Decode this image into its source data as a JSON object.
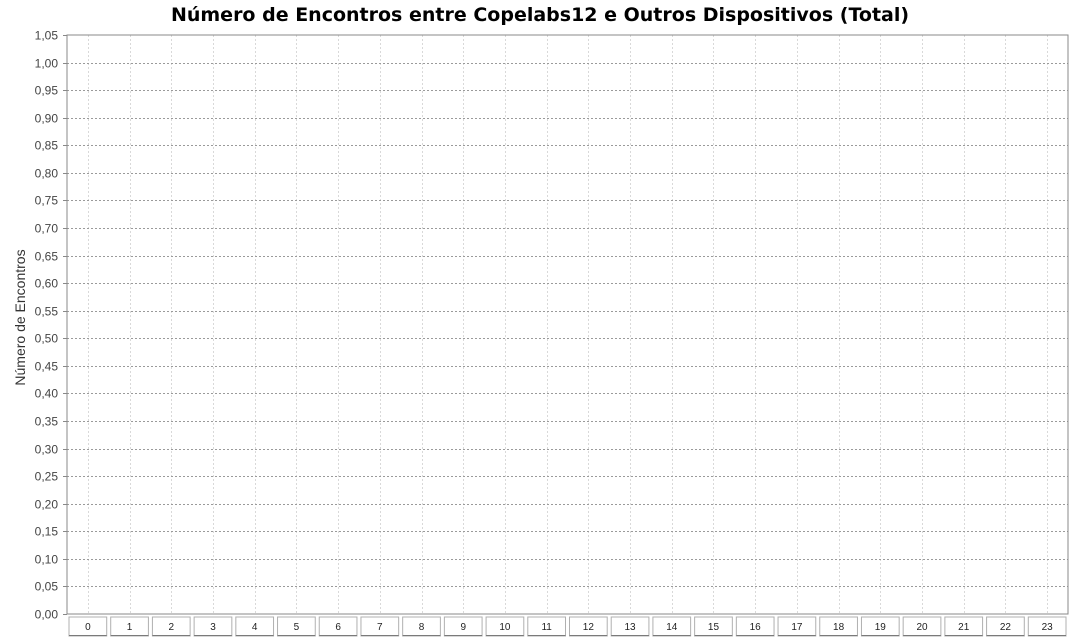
{
  "chart_data": {
    "type": "bar",
    "title": "Número de Encontros entre Copelabs12 e Outros Dispositivos (Total)",
    "xlabel": "",
    "ylabel": "Número de Encontros",
    "categories": [
      "0",
      "1",
      "2",
      "3",
      "4",
      "5",
      "6",
      "7",
      "8",
      "9",
      "10",
      "11",
      "12",
      "13",
      "14",
      "15",
      "16",
      "17",
      "18",
      "19",
      "20",
      "21",
      "22",
      "23"
    ],
    "series": [
      {
        "values": [
          0,
          0,
          0,
          0,
          0,
          0,
          0,
          0,
          0,
          0,
          0,
          0,
          0,
          0,
          0,
          0,
          0,
          0,
          0,
          0,
          0,
          0,
          0,
          0
        ]
      }
    ],
    "ylim": [
      0,
      1.05
    ],
    "yticks": [
      "0,00",
      "0,05",
      "0,10",
      "0,15",
      "0,20",
      "0,25",
      "0,30",
      "0,35",
      "0,40",
      "0,45",
      "0,50",
      "0,55",
      "0,60",
      "0,65",
      "0,70",
      "0,75",
      "0,80",
      "0,85",
      "0,90",
      "0,95",
      "1,00",
      "1,05"
    ],
    "grid": true,
    "legend": "none",
    "colors": {
      "background": "#ffffff",
      "grid": "#c8c8c8",
      "axis": "#888888",
      "bar": "#ff0000"
    }
  }
}
